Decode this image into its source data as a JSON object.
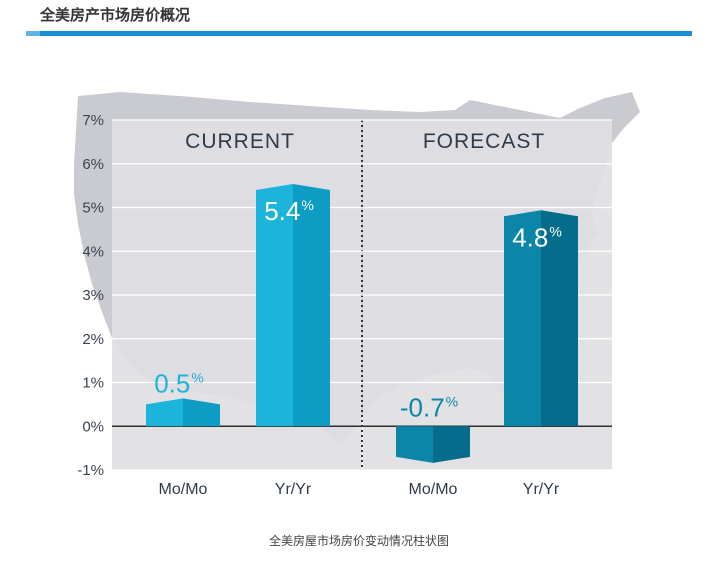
{
  "header": {
    "title": "全美房产市场房价概况"
  },
  "caption": "全美房屋市场房价变动情况柱状图",
  "colors": {
    "current_light": "#1db4dc",
    "current_dark": "#0d9cc4",
    "forecast_light": "#0b86a8",
    "forecast_dark": "#066c8c",
    "map": "#c9cbd0",
    "panel": "#e1e2e5",
    "accent": "#1a8fd6"
  },
  "chart_data": {
    "type": "bar",
    "y_ticks": [
      "7%",
      "6%",
      "5%",
      "4%",
      "3%",
      "2%",
      "1%",
      "0%",
      "-1%"
    ],
    "ylim": [
      -1,
      7
    ],
    "grid": true,
    "panels": [
      {
        "title": "CURRENT",
        "categories": [
          "Mo/Mo",
          "Yr/Yr"
        ],
        "values": [
          0.5,
          5.4
        ],
        "labels": [
          "0.5",
          "5.4"
        ],
        "unit": "%"
      },
      {
        "title": "FORECAST",
        "categories": [
          "Mo/Mo",
          "Yr/Yr"
        ],
        "values": [
          -0.7,
          4.8
        ],
        "labels": [
          "-0.7",
          "4.8"
        ],
        "unit": "%"
      }
    ]
  }
}
